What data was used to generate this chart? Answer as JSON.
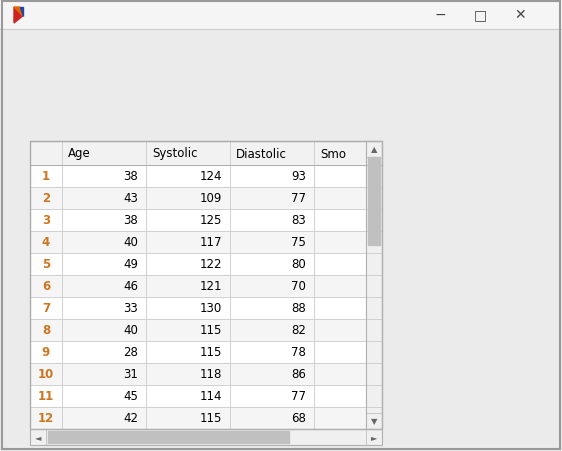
{
  "headers": [
    "",
    "Age",
    "Systolic",
    "Diastolic",
    "Smo"
  ],
  "rows": [
    [
      1,
      38,
      124,
      93
    ],
    [
      2,
      43,
      109,
      77
    ],
    [
      3,
      38,
      125,
      83
    ],
    [
      4,
      40,
      117,
      75
    ],
    [
      5,
      49,
      122,
      80
    ],
    [
      6,
      46,
      121,
      70
    ],
    [
      7,
      33,
      130,
      88
    ],
    [
      8,
      40,
      115,
      82
    ],
    [
      9,
      28,
      115,
      78
    ],
    [
      10,
      31,
      118,
      86
    ],
    [
      11,
      45,
      114,
      77
    ],
    [
      12,
      42,
      115,
      68
    ]
  ],
  "window_bg": "#e8e8e8",
  "titlebar_bg": "#f5f5f5",
  "content_bg": "#ebebeb",
  "table_bg": "#ffffff",
  "header_bg": "#f2f2f2",
  "row_even_bg": "#ffffff",
  "row_odd_bg": "#f5f5f5",
  "border_color": "#d0d0d0",
  "text_color": "#000000",
  "row_num_color": "#cc7722",
  "header_text_color": "#000000",
  "scrollbar_thumb": "#c0c0c0",
  "scrollbar_track": "#f0f0f0",
  "fig_width": 5.62,
  "fig_height": 4.52,
  "icon_color_red": "#cc2222",
  "icon_color_orange": "#dd6600",
  "icon_color_blue": "#2244aa"
}
